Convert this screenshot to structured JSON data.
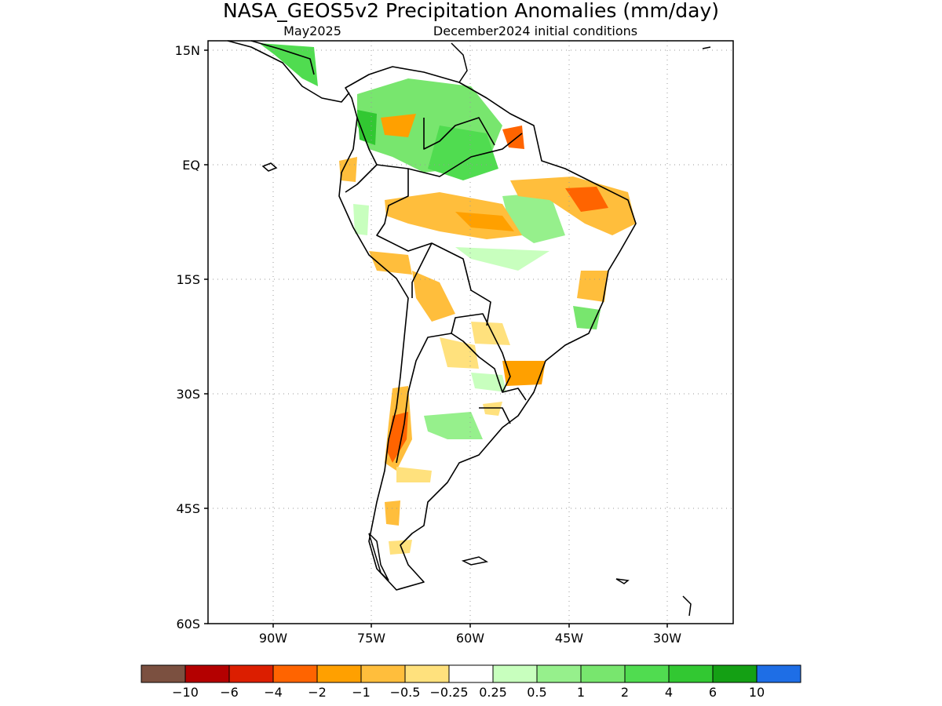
{
  "map": {
    "title": "NASA_GEOS5v2 Precipitation Anomalies (mm/day)",
    "subtitle_left": "May2025",
    "subtitle_right": "December2024 initial conditions",
    "lon_labels": [
      "90W",
      "75W",
      "60W",
      "45W",
      "30W"
    ],
    "lat_labels": [
      "15N",
      "EQ",
      "15S",
      "30S",
      "45S",
      "60S"
    ],
    "lon_range": [
      "100W",
      "20W"
    ],
    "lat_range": [
      "60S",
      "15N"
    ],
    "grid": "dotted"
  },
  "legend": {
    "colors": [
      "#7b5040",
      "#b40000",
      "#dc1e00",
      "#ff6400",
      "#ffa000",
      "#ffbe3c",
      "#ffe17d",
      "#ffffff",
      "#c8ffbe",
      "#96f08c",
      "#78e66e",
      "#50dc50",
      "#32c832",
      "#14a014",
      "#1e6ee6"
    ],
    "labels": [
      "−10",
      "−6",
      "−4",
      "−2",
      "−1",
      "−0.5",
      "−0.25",
      "0.25",
      "0.5",
      "1",
      "2",
      "4",
      "6",
      "10"
    ]
  }
}
